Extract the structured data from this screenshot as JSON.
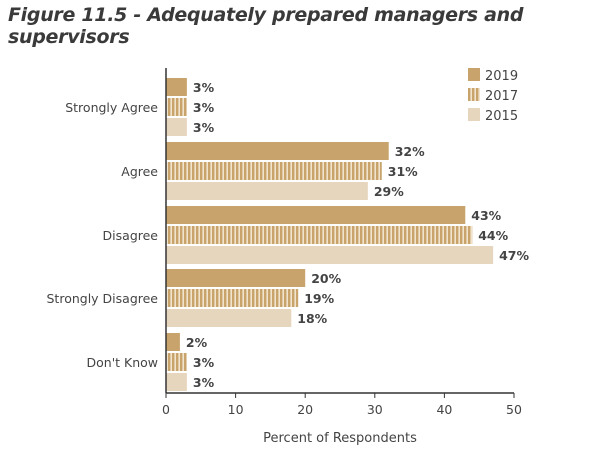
{
  "title": "Figure 11.5 - Adequately prepared managers and supervisors",
  "chart_data": {
    "type": "bar",
    "orientation": "horizontal",
    "categories": [
      "Strongly Agree",
      "Agree",
      "Disagree",
      "Strongly Disagree",
      "Don't Know"
    ],
    "series": [
      {
        "name": "2019",
        "values": [
          3,
          32,
          43,
          20,
          2
        ],
        "labels": [
          "3%",
          "32%",
          "43%",
          "20%",
          "2%"
        ]
      },
      {
        "name": "2017",
        "values": [
          3,
          31,
          44,
          19,
          3
        ],
        "labels": [
          "3%",
          "31%",
          "44%",
          "19%",
          "3%"
        ]
      },
      {
        "name": "2015",
        "values": [
          3,
          29,
          47,
          18,
          3
        ],
        "labels": [
          "3%",
          "29%",
          "47%",
          "18%",
          "3%"
        ]
      }
    ],
    "xlabel": "Percent of Respondents",
    "ylabel": "",
    "xlim": [
      0,
      50
    ],
    "xticks": [
      0,
      10,
      20,
      30,
      40,
      50
    ],
    "grid": false,
    "legend": "top-right",
    "colors": {
      "2019": "#c8a46c",
      "2017": "#c8a46c",
      "2015": "#e7d6be"
    },
    "patterns": {
      "2019": "solid",
      "2017": "vertical-stripes",
      "2015": "solid"
    }
  }
}
